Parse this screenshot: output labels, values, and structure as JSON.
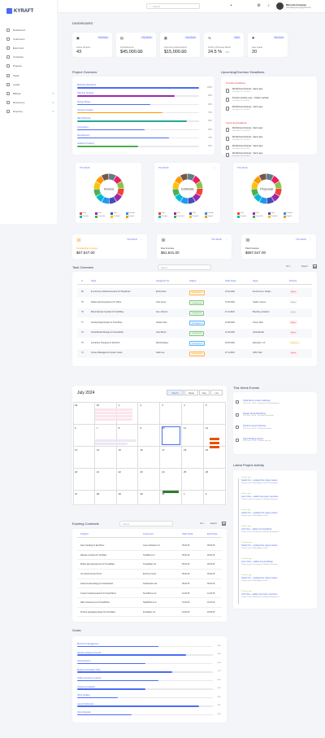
{
  "brand": {
    "name": "KYRAFT"
  },
  "sidebar": {
    "items": [
      {
        "label": "Dashboard",
        "icon": "dashboard-icon",
        "chevron": ""
      },
      {
        "label": "Customers",
        "icon": "users-icon",
        "chevron": ""
      },
      {
        "label": "Expenses",
        "icon": "wallet-icon",
        "chevron": ""
      },
      {
        "label": "Contracts",
        "icon": "contract-icon",
        "chevron": ""
      },
      {
        "label": "Projects",
        "icon": "folder-icon",
        "chevron": ""
      },
      {
        "label": "Tasks",
        "icon": "checklist-icon",
        "chevron": ""
      },
      {
        "label": "Leads",
        "icon": "funnel-icon",
        "chevron": ""
      },
      {
        "label": "Billings",
        "icon": "billing-icon",
        "chevron": "▾"
      },
      {
        "label": "Resources",
        "icon": "resources-icon",
        "chevron": "▾"
      },
      {
        "label": "Directory",
        "icon": "directory-icon",
        "chevron": "▾"
      }
    ]
  },
  "topbar": {
    "search_placeholder": "Search",
    "user_name": "Mircuda Goutwyn",
    "user_email": "mircudagoutwyn@gmail.com"
  },
  "page_title": "DASHBOARD",
  "stats": [
    {
      "label": "Active Projects",
      "value": "43",
      "badge": "This Week",
      "change": ""
    },
    {
      "label": "Total Revenue",
      "value": "$45,000.00",
      "badge": "This Month",
      "change": "+12%"
    },
    {
      "label": "Upcoming Subscriptions",
      "value": "$15,000.00",
      "badge": "Next Week",
      "change": "+8%"
    },
    {
      "label": "Profit vs Previous Month",
      "value": "24.5 %",
      "badge": "Profit",
      "change": "+5%"
    },
    {
      "label": "New Leads",
      "value": "20",
      "badge": "This week",
      "change": ""
    }
  ],
  "project_overview": {
    "title": "Project Overview",
    "items": [
      {
        "label": "Marketing Research",
        "pct": "100%",
        "value": 1.0,
        "color": "#4a6cf7"
      },
      {
        "label": "Planning Strategy",
        "pct": "80%",
        "value": 0.8,
        "color": "#9c27b0"
      },
      {
        "label": "Design Phase",
        "pct": "60%",
        "value": 0.6,
        "color": "#4a6cf7"
      },
      {
        "label": "Content Creation",
        "pct": "70%",
        "value": 0.7,
        "color": "#ff9800"
      },
      {
        "label": "SEO Planning",
        "pct": "90%",
        "value": 0.9,
        "color": "#26a69a"
      },
      {
        "label": "Copywriting",
        "pct": "55%",
        "value": 0.55,
        "color": "#4a6cf7"
      },
      {
        "label": "Development",
        "pct": "75%",
        "value": 0.75,
        "color": "#4a6cf7"
      },
      {
        "label": "Analytics Tracking",
        "pct": "50%",
        "value": 0.5,
        "color": "#4caf50"
      }
    ]
  },
  "deadlines": {
    "title": "Upcoming/Overdue Deadlines",
    "overdue_label": "Overdue Deadlines",
    "upcoming_label": "Upcoming Deadlines",
    "items": [
      {
        "title": "Mindfulness Retreat - Santo app",
        "sub": "Due date: 14 Jul 2024"
      },
      {
        "title": "Product website copy - Kraken website",
        "sub": "Due date: 12 Jul 2024"
      },
      {
        "title": "Mindfulness Retreat - Santo app",
        "sub": "Due date: 10 Jul 2024"
      },
      {
        "title": "Mindfulness Retreat - Santo app",
        "sub": "Due date: 20 Jul 2024"
      },
      {
        "title": "Mindfulness Retreat - Santo app",
        "sub": "Due date: 22 Jul 2024"
      },
      {
        "title": "Mindfulness Retreat - Santo app",
        "sub": "Due date: 24 Jul 2024"
      },
      {
        "title": "Mindfulness Retreat - Santo app",
        "sub": "Due date: 26 Jul 2024"
      }
    ]
  },
  "donuts": [
    {
      "select": "This Month",
      "center": "Invoice"
    },
    {
      "select": "This Month",
      "center": "Estimate"
    },
    {
      "select": "This Month",
      "center": "Proposal"
    }
  ],
  "donut_legend": [
    "Draft",
    "Sent",
    "Paid",
    "Partially",
    "Overdue",
    "Cancelled",
    "Declined",
    "Unpaid"
  ],
  "donut_colors": [
    "#f44336",
    "#9c27b0",
    "#3f51b5",
    "#2196f3",
    "#00bcd4",
    "#4caf50",
    "#ffc107",
    "#ff9800",
    "#795548",
    "#607d8b",
    "#e91e63",
    "#8bc34a"
  ],
  "finance": [
    {
      "label": "Outstanding Invoices",
      "value": "$67,547.00",
      "select": "This Month",
      "color": "#ff9800",
      "bg": "#fff3e0",
      "icon": "invoice-icon"
    },
    {
      "label": "Due Invoices",
      "value": "$51,541.00",
      "select": "This Month",
      "color": "#333",
      "bg": "#f0f0f0",
      "icon": "calendar-icon"
    },
    {
      "label": "Paid Invoices",
      "value": "$687,547.00",
      "select": "This Month",
      "color": "#333",
      "bg": "#e8f5e9",
      "icon": "paid-icon"
    }
  ],
  "task_overview": {
    "title": "Task Overview",
    "search_placeholder": "Search",
    "page_size": "10",
    "export_label": "Export",
    "columns": [
      "#",
      "Task",
      "Assigned To",
      "Status",
      "Start Date",
      "Tags",
      "Priority"
    ],
    "rows": [
      {
        "id": "80",
        "task": "E-commerce Website Revamp for ShopSmart",
        "assigned": "Emily Davis",
        "status": "Not Started",
        "date": "01.01.2024",
        "tags": "E-commerce, Design",
        "priority": "High"
      },
      {
        "id": "79",
        "task": "Mobile App Development for FitLife",
        "assigned": "Josh Green",
        "status": "Completed",
        "date": "15.06.2023",
        "tags": "Health, Fitness",
        "priority": "Low"
      },
      {
        "id": "78",
        "task": "Brand Identity Overhaul for TechWave",
        "assigned": "Alex Johnson",
        "status": "Completed",
        "date": "10.11.2023",
        "tags": "Branding, Graphics",
        "priority": "Low"
      },
      {
        "id": "77",
        "task": "Landing Page Design for TravelSure",
        "assigned": "Sophia Chen",
        "status": "In Progress",
        "date": "01.08.2023",
        "tags": "Travel, Web",
        "priority": "High"
      },
      {
        "id": "76",
        "task": "Social Media Strategy for GreenEarth",
        "assigned": "Liam Brown",
        "status": "Completed",
        "date": "12.10.2023",
        "tags": "Social Media",
        "priority": "High"
      },
      {
        "id": "75",
        "task": "Interactive Prototype for EduTech",
        "assigned": "Mia Rodriguez",
        "status": "In Progress",
        "date": "02.05.2024",
        "tags": "Education, UX",
        "priority": "Medium"
      },
      {
        "id": "74",
        "task": "Content Management System Setup",
        "assigned": "Noah Lee",
        "status": "Not Started",
        "date": "07.11.2023",
        "tags": "CMS, Web",
        "priority": "High"
      }
    ]
  },
  "calendar": {
    "title": "July 2024",
    "views": [
      "Month",
      "Week",
      "Day",
      "List"
    ],
    "weeks": [
      [
        "29",
        "30",
        "1",
        "2",
        "3",
        "4",
        "5"
      ],
      [
        "6",
        "7",
        "8",
        "9",
        "10",
        "11",
        "12"
      ],
      [
        "13",
        "14",
        "15",
        "16",
        "17",
        "18",
        "19"
      ],
      [
        "20",
        "21",
        "22",
        "23",
        "24",
        "25",
        "26"
      ],
      [
        "27",
        "28",
        "29",
        "30",
        "31",
        "1",
        "2"
      ]
    ]
  },
  "events": {
    "title": "This Week Events",
    "items": [
      {
        "title": "Initial Demo review challenge",
        "sub": "10th June, 10:00 - Overview of Demo/Initiative"
      },
      {
        "title": "Design Sprint Workshop",
        "sub": "11th June, 14:00 - UX Sprint Workshop"
      },
      {
        "title": "Product Launch Meeting",
        "sub": "12th June, 10:00 - Final launch prep"
      },
      {
        "title": "Team Building Activity",
        "sub": "13th June, 16:00 - Outdoor fun Day"
      }
    ]
  },
  "activity": {
    "title": "Latest Project Activity",
    "items": [
      {
        "time": "2 hours ago",
        "title": "Sarah Kim - updated the project status",
        "sub": "Project name: Mobile App Launch Marketplace"
      },
      {
        "time": "4 hours ago",
        "title": "Liam Chen - added new team members",
        "sub": "Project name: E-commerce Platform Planning"
      },
      {
        "time": "6 hours ago",
        "title": "Sarah Kim - updated the project status",
        "sub": "Project name: Mobile App Launch"
      },
      {
        "time": "8 hours ago",
        "title": "John Doe - added new feedback",
        "sub": "Project name: Marketing Campaign Marketplace"
      },
      {
        "time": "10 hours ago",
        "title": "Sarah Kim - updated the project status",
        "sub": "Project name: Mobile App Launch"
      },
      {
        "time": "12 hours ago",
        "title": "Liam Chen - added new feedback",
        "sub": "Project name: E-commerce Platform Planning"
      },
      {
        "time": "14 hours ago",
        "title": "Sarah Kim - updated the project status",
        "sub": "Project name: Mobile App Launch"
      },
      {
        "time": "16 hours ago",
        "title": "John Doe - added new team members",
        "sub": "Project name: Marketing Campaign Marketplace"
      }
    ]
  },
  "contracts": {
    "title": "Expiring Contracts",
    "search_placeholder": "Search",
    "page_size": "10",
    "export_label": "Export",
    "columns": [
      "Subject",
      "Customer",
      "Start Date",
      "End Date"
    ],
    "rows": [
      {
        "subject": "New branding for EcoHome",
        "customer": "Green Solutions Inc.",
        "start": "05.02.25",
        "end": "05.02.25"
      },
      {
        "subject": "Website overhaul for TechMax",
        "customer": "TechMax LLC",
        "start": "05.02.25",
        "end": "05.02.25"
      },
      {
        "subject": "Mobile app development for TravelMate",
        "customer": "TravelMate Ltd.",
        "start": "05.02.25",
        "end": "05.02.25"
      },
      {
        "subject": "UX refresh for EcoTrend",
        "customer": "EcoTrend Corp.",
        "start": "05.02.25",
        "end": "05.02.25"
      },
      {
        "subject": "Social media strategy for FashionFirst",
        "customer": "FashionFirst Ltd.",
        "start": "05.02.25",
        "end": "05.02.25"
      },
      {
        "subject": "Content marketing launch for SmartHome",
        "customer": "SmartHome Inc.",
        "start": "12.03.25",
        "end": "12.03.25"
      },
      {
        "subject": "SEO enhancement for HealthPlus",
        "customer": "HealthPlus LLC",
        "start": "15.04.25",
        "end": "15.04.25"
      },
      {
        "subject": "Product packaging design for PureWater",
        "customer": "PureWater Co.",
        "start": "18.05.25",
        "end": "18.05.25"
      }
    ]
  },
  "goals": {
    "title": "Goals",
    "items": [
      {
        "label": "Brand Trust Engagement",
        "pct": "60%",
        "value": 0.6
      },
      {
        "label": "Website Analytics & Growth",
        "pct": "80%",
        "value": 0.8
      },
      {
        "label": "Cost Reduction",
        "pct": "50%",
        "value": 0.5
      },
      {
        "label": "Business Automation Tools",
        "pct": "70%",
        "value": 0.7
      },
      {
        "label": "Quality Assurance Features",
        "pct": "60%",
        "value": 0.6
      },
      {
        "label": "Customer Feedback",
        "pct": "50%",
        "value": 0.5
      },
      {
        "label": "Hiring Updates",
        "pct": "30%",
        "value": 0.3
      },
      {
        "label": "Launch Mobile App",
        "pct": "90%",
        "value": 0.9
      },
      {
        "label": "Client Retention",
        "pct": "40%",
        "value": 0.4
      }
    ]
  }
}
